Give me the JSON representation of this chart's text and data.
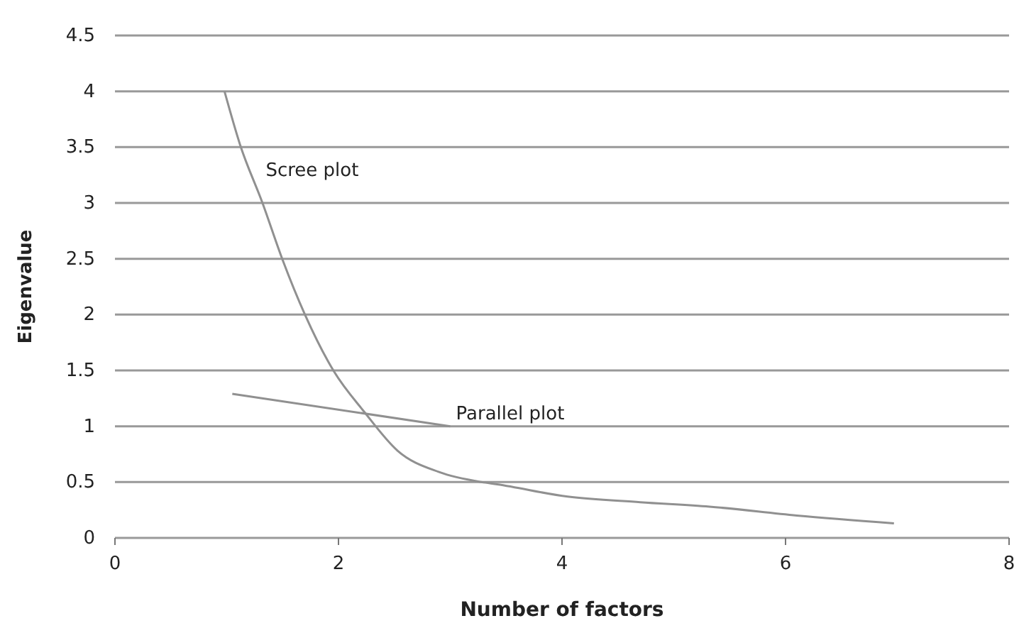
{
  "chart_data": {
    "type": "line",
    "xlabel": "Number of factors",
    "ylabel": "Eigenvalue",
    "xlim": [
      0,
      8
    ],
    "xticks": [
      0,
      2,
      4,
      6,
      8
    ],
    "ylim": [
      0,
      4.5
    ],
    "yticks": [
      0,
      0.5,
      1,
      1.5,
      2,
      2.5,
      3,
      3.5,
      4,
      4.5
    ],
    "grid": "y",
    "marker": "none",
    "line_style": "solid",
    "series": [
      {
        "name": "Scree plot",
        "color": "#909090",
        "x": [
          0.98,
          1.12,
          1.32,
          1.5,
          1.7,
          1.96,
          2.23,
          2.53,
          2.9,
          3.28,
          3.42,
          4.05,
          4.7,
          5.32,
          6.1,
          6.97
        ],
        "values": [
          4,
          3.52,
          3,
          2.49,
          2,
          1.49,
          1.13,
          0.78,
          0.59,
          0.5,
          0.48,
          0.37,
          0.32,
          0.28,
          0.2,
          0.13
        ]
      },
      {
        "name": "Parallel plot",
        "color": "#909090",
        "x": [
          1.05,
          3
        ],
        "values": [
          1.29,
          1.0
        ]
      }
    ]
  }
}
